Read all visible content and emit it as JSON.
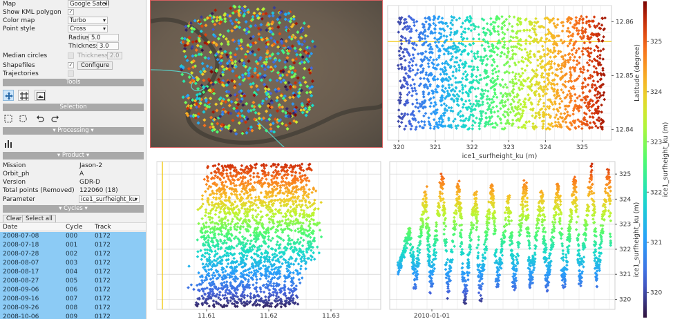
{
  "settings": {
    "map_label": "Map",
    "map_value": "Google Satellite",
    "kml_label": "Show KML polygon",
    "kml_checked": "✓",
    "colormap_label": "Color map",
    "colormap_value": "Turbo",
    "pointstyle_label": "Point style",
    "pointstyle_value": "Cross",
    "radius_label": "Radius",
    "radius_value": "5.0",
    "thickness_label": "Thickness",
    "thickness_value": "3.0",
    "median_label": "Median circles",
    "median_thickness_label": "Thickness",
    "median_thickness_value": "2.0",
    "shapefiles_label": "Shapefiles",
    "shapefiles_checked": "✓",
    "configure_label": "Configure",
    "trajectories_label": "Trajectories"
  },
  "sections": {
    "tools": "Tools",
    "selection": "Selection",
    "processing": "▾ Processing ▾",
    "product": "▾ Product ▾",
    "cycles": "▾ Cycles ▾"
  },
  "product": {
    "mission_label": "Mission",
    "mission_value": "Jason-2",
    "orbit_label": "Orbit_ph",
    "orbit_value": "A",
    "version_label": "Version",
    "version_value": "GDR-D",
    "total_label": "Total points (Removed)",
    "total_value": "122060 (18)",
    "parameter_label": "Parameter",
    "parameter_value": "ice1_surfheight_ku"
  },
  "cycles": {
    "clear_label": "Clear",
    "selectall_label": "Select all",
    "headers": [
      "Date",
      "Cycle",
      "Track"
    ],
    "rows": [
      [
        "2008-07-08",
        "000",
        "0172"
      ],
      [
        "2008-07-18",
        "001",
        "0172"
      ],
      [
        "2008-07-28",
        "002",
        "0172"
      ],
      [
        "2008-08-07",
        "003",
        "0172"
      ],
      [
        "2008-08-17",
        "004",
        "0172"
      ],
      [
        "2008-08-27",
        "005",
        "0172"
      ],
      [
        "2008-09-06",
        "006",
        "0172"
      ],
      [
        "2008-09-16",
        "007",
        "0172"
      ],
      [
        "2008-09-26",
        "008",
        "0172"
      ],
      [
        "2008-10-06",
        "009",
        "0172"
      ]
    ]
  },
  "colors": {
    "accent": "#8ccbf5",
    "section_bar": "#a9a9a9",
    "marker_line": "#f2c500",
    "selection_border": "#d66060"
  },
  "icons": [
    "move-icon",
    "frame-icon",
    "image-icon",
    "rect-select-icon",
    "lasso-select-icon",
    "undo-icon",
    "redo-icon",
    "bar-chart-icon"
  ],
  "chart_data": [
    {
      "type": "scatter",
      "x_ticks": [
        "320",
        "321",
        "322",
        "323",
        "324",
        "325"
      ],
      "y_ticks": [
        "12.86",
        "12.85",
        "12.84"
      ],
      "xlabel": "ice1_surfheight_ku (m)",
      "ylabel": "Latitude (degree)",
      "xlim": [
        319.7,
        325.8
      ],
      "ylim": [
        12.838,
        12.863
      ]
    },
    {
      "type": "scatter",
      "x_ticks": [
        "11.61",
        "11.62",
        "11.63"
      ],
      "y_ticks": [
        "320",
        "321",
        "322",
        "323",
        "324",
        "325"
      ],
      "xlim": [
        11.602,
        11.638
      ],
      "ylim": [
        319.6,
        325.5
      ]
    },
    {
      "type": "scatter",
      "x_ticks": [
        "2010-01-01"
      ],
      "y_ticks": [
        "320",
        "321",
        "322",
        "323",
        "324",
        "325"
      ],
      "ylabel": "ice1_surfheight_ku (m)",
      "ylim": [
        319.6,
        325.5
      ]
    },
    {
      "type": "heatmap",
      "ticks": [
        "325",
        "324",
        "323",
        "322",
        "321",
        "320"
      ],
      "label": "ice1_surfheight_ku (m)",
      "range": [
        319.5,
        325.8
      ]
    }
  ]
}
